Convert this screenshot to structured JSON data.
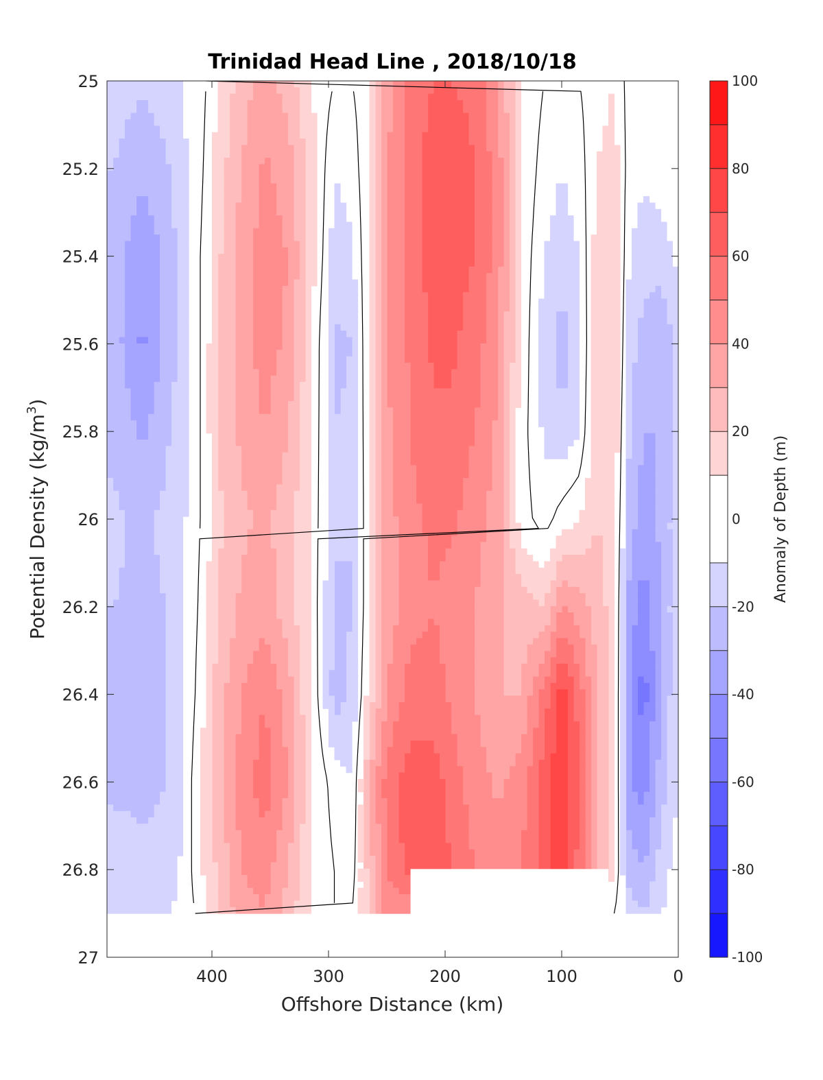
{
  "chart_data": {
    "type": "heatmap",
    "title": "Trinidad Head Line , 2018/10/18",
    "xlabel": "Offshore Distance (km)",
    "ylabel_main": "Potential Density (kg/m",
    "ylabel_sup": "3",
    "ylabel_close": ")",
    "colorbar_label": "Anomaly of Depth (m)",
    "xlim": [
      490,
      0
    ],
    "ylim": [
      25,
      27
    ],
    "x_reversed": true,
    "y_reversed": true,
    "x_ticks": [
      400,
      300,
      200,
      100,
      0
    ],
    "x_tick_labels": [
      "400",
      "300",
      "200",
      "100",
      "0"
    ],
    "y_ticks": [
      25,
      25.2,
      25.4,
      25.6,
      25.8,
      26,
      26.2,
      26.4,
      26.6,
      26.8,
      27
    ],
    "y_tick_labels": [
      "25",
      "25.2",
      "25.4",
      "25.6",
      "25.8",
      "26",
      "26.2",
      "26.4",
      "26.6",
      "26.8",
      "27"
    ],
    "colorbar_range": [
      -100,
      100
    ],
    "colorbar_ticks": [
      100,
      80,
      60,
      40,
      20,
      0,
      -20,
      -40,
      -60,
      -80,
      -100
    ],
    "colorbar_tick_labels": [
      "100",
      "80",
      "60",
      "40",
      "20",
      "0",
      "-20",
      "-40",
      "-60",
      "-80",
      "-100"
    ],
    "contour_levels": [
      -100,
      -90,
      -80,
      -70,
      -60,
      -50,
      -40,
      -30,
      -20,
      -10,
      10,
      20,
      30,
      40,
      50,
      60,
      70,
      80,
      90,
      100
    ],
    "zero_contour_color": "#000000",
    "colormap": "blue-white-red",
    "grid": false,
    "density_grid": [
      25,
      25.2,
      25.4,
      25.6,
      25.8,
      26,
      26.2,
      26.4,
      26.6,
      26.8,
      26.9
    ],
    "columns": [
      {
        "x": 485,
        "values": [
          -15,
          -20,
          -25,
          -25,
          -22,
          -18,
          -20,
          -22,
          -22,
          -15,
          -10
        ]
      },
      {
        "x": 460,
        "values": [
          -18,
          -28,
          -38,
          -42,
          -32,
          -22,
          -22,
          -24,
          -22,
          -18,
          -12
        ]
      },
      {
        "x": 440,
        "values": [
          -15,
          -22,
          -28,
          -28,
          -22,
          -18,
          -20,
          -20,
          -20,
          -18,
          -12
        ]
      },
      {
        "x": 425,
        "values": [
          -10,
          -12,
          -15,
          -15,
          -14,
          -12,
          -12,
          -12,
          -10,
          -8,
          -5
        ]
      },
      {
        "x": 410,
        "values": [
          -5,
          -3,
          0,
          0,
          0,
          0,
          2,
          5,
          10,
          8,
          2
        ]
      },
      {
        "x": 395,
        "values": [
          10,
          15,
          18,
          20,
          20,
          18,
          20,
          25,
          25,
          22,
          20
        ]
      },
      {
        "x": 375,
        "values": [
          25,
          30,
          35,
          35,
          32,
          28,
          32,
          40,
          45,
          40,
          35
        ]
      },
      {
        "x": 355,
        "values": [
          35,
          42,
          45,
          45,
          40,
          32,
          35,
          50,
          55,
          45,
          40
        ]
      },
      {
        "x": 335,
        "values": [
          25,
          35,
          40,
          38,
          30,
          25,
          25,
          35,
          40,
          30,
          25
        ]
      },
      {
        "x": 315,
        "values": [
          10,
          15,
          15,
          12,
          10,
          8,
          8,
          10,
          12,
          10,
          8
        ]
      },
      {
        "x": 295,
        "values": [
          0,
          -10,
          -15,
          -22,
          -20,
          -18,
          -22,
          -25,
          -5,
          0,
          0
        ]
      },
      {
        "x": 280,
        "values": [
          0,
          -5,
          -12,
          -20,
          -18,
          -20,
          -20,
          -18,
          -10,
          -5,
          0
        ]
      },
      {
        "x": 265,
        "values": [
          5,
          8,
          10,
          12,
          10,
          10,
          10,
          15,
          30,
          25,
          20
        ]
      },
      {
        "x": 250,
        "values": [
          35,
          40,
          40,
          40,
          38,
          35,
          35,
          40,
          55,
          50,
          45
        ]
      },
      {
        "x": 230,
        "values": [
          55,
          55,
          55,
          52,
          50,
          48,
          45,
          55,
          65,
          65,
          40
        ]
      },
      {
        "x": 210,
        "values": [
          60,
          65,
          65,
          62,
          58,
          52,
          50,
          55,
          65,
          68,
          35
        ]
      },
      {
        "x": 195,
        "values": [
          60,
          65,
          65,
          62,
          58,
          52,
          45,
          48,
          55,
          60,
          25
        ]
      },
      {
        "x": 175,
        "values": [
          58,
          60,
          60,
          55,
          50,
          45,
          40,
          40,
          45,
          50,
          15
        ]
      },
      {
        "x": 155,
        "values": [
          40,
          45,
          45,
          42,
          38,
          35,
          32,
          30,
          38,
          45,
          5
        ]
      },
      {
        "x": 135,
        "values": [
          10,
          10,
          8,
          8,
          5,
          5,
          25,
          30,
          45,
          50,
          0
        ]
      },
      {
        "x": 115,
        "values": [
          0,
          -5,
          -10,
          -15,
          -12,
          -5,
          20,
          55,
          65,
          65,
          0
        ]
      },
      {
        "x": 100,
        "values": [
          0,
          -10,
          -15,
          -25,
          -18,
          5,
          40,
          75,
          80,
          80,
          0
        ]
      },
      {
        "x": 85,
        "values": [
          0,
          -5,
          -10,
          -15,
          -10,
          10,
          35,
          55,
          60,
          55,
          0
        ]
      },
      {
        "x": 70,
        "values": [
          5,
          10,
          15,
          20,
          20,
          20,
          25,
          30,
          30,
          30,
          0
        ]
      },
      {
        "x": 55,
        "values": [
          10,
          15,
          20,
          20,
          18,
          15,
          15,
          15,
          15,
          10,
          0
        ]
      },
      {
        "x": 42,
        "values": [
          -5,
          -5,
          -10,
          -15,
          -20,
          -25,
          -35,
          -40,
          -40,
          -25,
          -15
        ]
      },
      {
        "x": 30,
        "values": [
          -5,
          -8,
          -15,
          -25,
          -30,
          -35,
          -45,
          -55,
          -45,
          -30,
          -20
        ]
      },
      {
        "x": 15,
        "values": [
          -5,
          -5,
          -15,
          -30,
          -30,
          -28,
          -30,
          -30,
          -25,
          -15,
          -10
        ]
      },
      {
        "x": 0,
        "values": [
          -2,
          -2,
          -8,
          -15,
          -15,
          -12,
          -10,
          -10,
          -10,
          -5,
          -5
        ]
      }
    ],
    "mask_region_below": {
      "x_range": [
        60,
        232
      ],
      "density_start": 26.8
    },
    "no_data_below_density": 26.9
  }
}
